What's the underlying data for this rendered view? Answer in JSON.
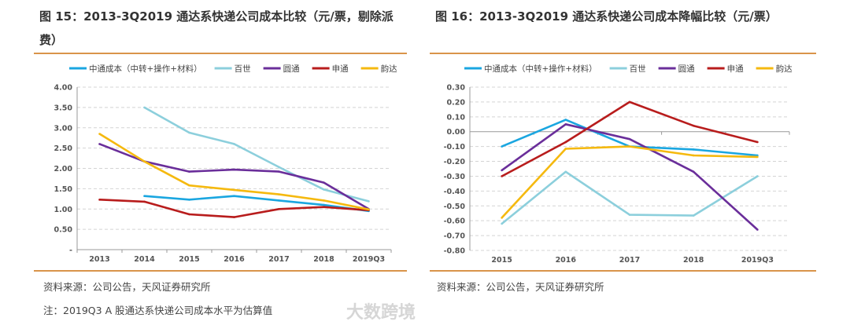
{
  "figures": [
    {
      "title": "图 15：2013-3Q2019 通达系快递公司成本比较（元/票，剔除派费）",
      "source": "资料来源：公司公告，天风证券研究所",
      "note": "注：2019Q3 A 股通达系快递公司成本水平为估算值"
    },
    {
      "title": "图 16：2013-3Q2019 通达系快递公司成本降幅比较（元/票）",
      "source": "资料来源：公司公告，天风证券研究所"
    }
  ],
  "watermark": "大数跨境",
  "chart_data": [
    {
      "type": "line",
      "title": "图 15：2013-3Q2019 通达系快递公司成本比较（元/票，剔除派费）",
      "categories": [
        "2013",
        "2014",
        "2015",
        "2016",
        "2017",
        "2018",
        "2019Q3"
      ],
      "yticks": [
        "-",
        "0.50",
        "1.00",
        "1.50",
        "2.00",
        "2.50",
        "3.00",
        "3.50",
        "4.00"
      ],
      "ylim": [
        0,
        4
      ],
      "grid": true,
      "legend": "top",
      "series": [
        {
          "name": "中通成本（中转+操作+材料）",
          "color": "#1aa6e0",
          "values": [
            null,
            1.32,
            1.23,
            1.32,
            1.21,
            1.1,
            0.95
          ]
        },
        {
          "name": "百世",
          "color": "#8ccfdc",
          "values": [
            null,
            3.5,
            2.88,
            2.6,
            2.03,
            1.48,
            1.19
          ]
        },
        {
          "name": "圆通",
          "color": "#6a2e9a",
          "values": [
            2.6,
            2.17,
            1.92,
            1.97,
            1.92,
            1.65,
            1.0
          ]
        },
        {
          "name": "申通",
          "color": "#b81c1c",
          "values": [
            1.23,
            1.18,
            0.87,
            0.8,
            1.0,
            1.05,
            0.97
          ]
        },
        {
          "name": "韵达",
          "color": "#f5b90f",
          "values": [
            2.85,
            2.17,
            1.58,
            1.47,
            1.36,
            1.21,
            0.99
          ]
        }
      ]
    },
    {
      "type": "line",
      "title": "图 16：2013-3Q2019 通达系快递公司成本降幅比较（元/票）",
      "categories": [
        "2015",
        "2016",
        "2017",
        "2018",
        "2019Q3"
      ],
      "yticks": [
        "-0.80",
        "-0.70",
        "-0.60",
        "-0.50",
        "-0.40",
        "-0.30",
        "-0.20",
        "-0.10",
        "0.00",
        "0.10",
        "0.20",
        "0.30"
      ],
      "ylim": [
        -0.8,
        0.3
      ],
      "grid": true,
      "legend": "top",
      "series": [
        {
          "name": "中通成本（中转+操作+材料）",
          "color": "#1aa6e0",
          "values": [
            -0.1,
            0.08,
            -0.1,
            -0.12,
            -0.16
          ]
        },
        {
          "name": "百世",
          "color": "#8ccfdc",
          "values": [
            -0.62,
            -0.27,
            -0.56,
            -0.565,
            -0.3
          ]
        },
        {
          "name": "圆通",
          "color": "#6a2e9a",
          "values": [
            -0.26,
            0.05,
            -0.05,
            -0.27,
            -0.66
          ]
        },
        {
          "name": "申通",
          "color": "#b81c1c",
          "values": [
            -0.3,
            -0.07,
            0.2,
            0.04,
            -0.07
          ]
        },
        {
          "name": "韵达",
          "color": "#f5b90f",
          "values": [
            -0.58,
            -0.115,
            -0.1,
            -0.16,
            -0.17
          ]
        }
      ]
    }
  ]
}
